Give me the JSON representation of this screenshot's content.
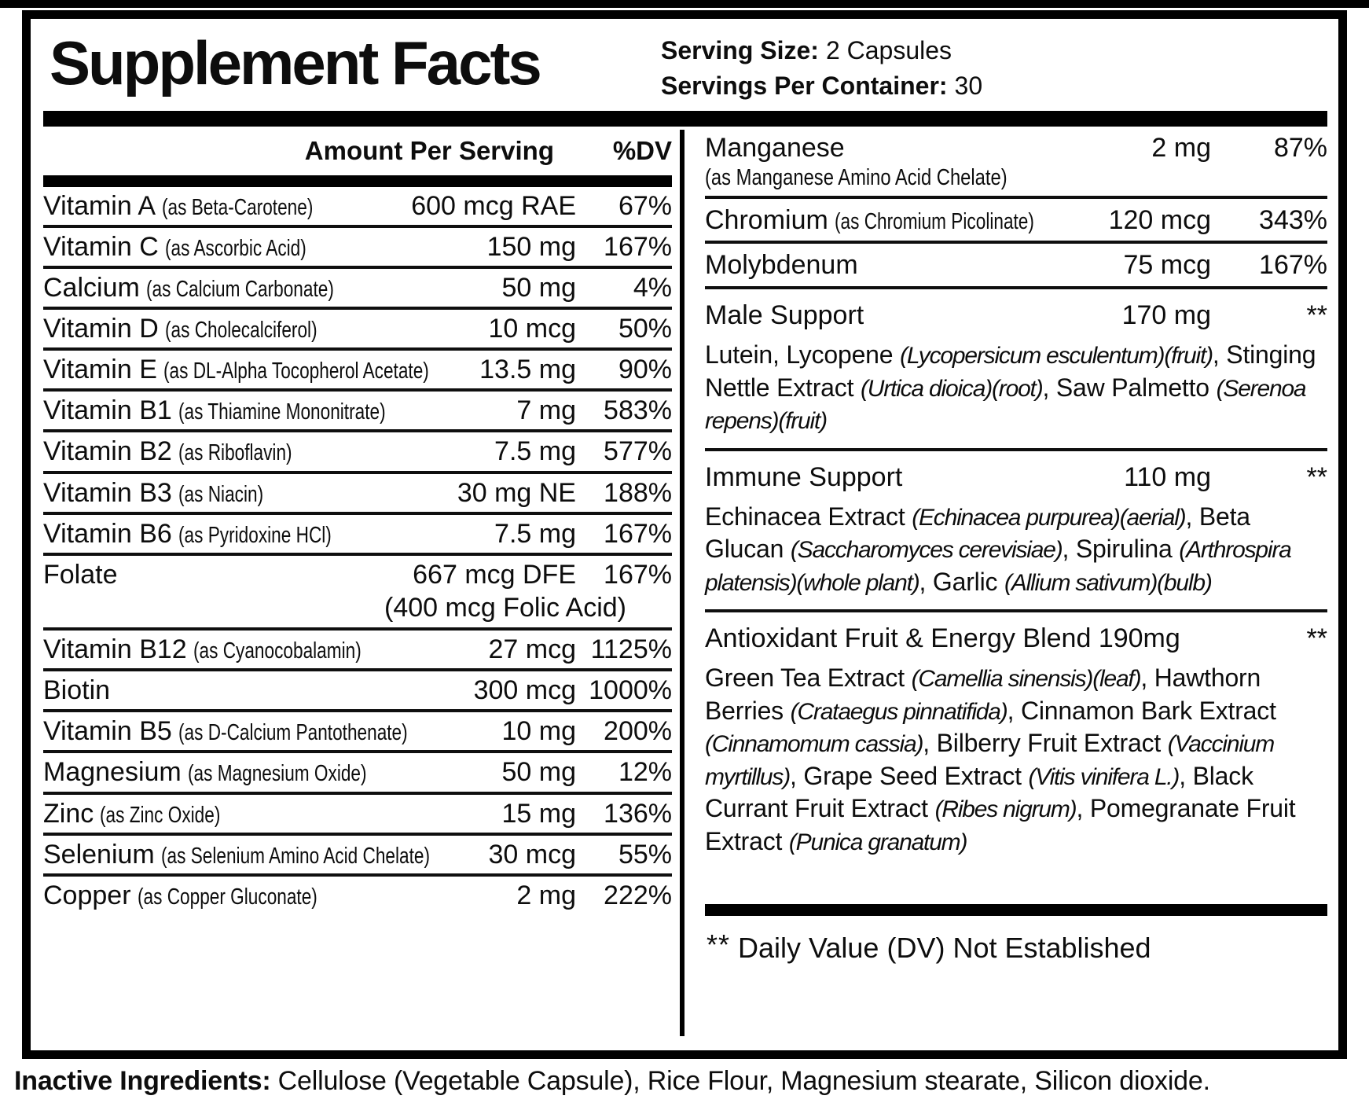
{
  "title": "Supplement Facts",
  "serving": {
    "size_label": "Serving Size:",
    "size_value": "2 Capsules",
    "container_label": "Servings Per Container:",
    "container_value": "30"
  },
  "left": {
    "header_amount": "Amount Per Serving",
    "header_dv": "%DV",
    "rows": [
      {
        "name": "Vitamin A",
        "as": "(as Beta-Carotene)",
        "amount": "600 mcg RAE",
        "dv": "67%"
      },
      {
        "name": "Vitamin C",
        "as": "(as Ascorbic Acid)",
        "amount": "150 mg",
        "dv": "167%"
      },
      {
        "name": "Calcium",
        "as": "(as Calcium Carbonate)",
        "amount": "50 mg",
        "dv": "4%"
      },
      {
        "name": "Vitamin D",
        "as": "(as Cholecalciferol)",
        "amount": "10 mcg",
        "dv": "50%"
      },
      {
        "name": "Vitamin E",
        "as": "(as DL-Alpha Tocopherol Acetate)",
        "amount": "13.5 mg",
        "dv": "90%"
      },
      {
        "name": "Vitamin B1",
        "as": "(as Thiamine Mononitrate)",
        "amount": "7 mg",
        "dv": "583%"
      },
      {
        "name": "Vitamin B2",
        "as": "(as Riboflavin)",
        "amount": "7.5 mg",
        "dv": "577%"
      },
      {
        "name": "Vitamin B3",
        "as": "(as Niacin)",
        "amount": "30 mg NE",
        "dv": "188%"
      },
      {
        "name": "Vitamin B6",
        "as": "(as Pyridoxine HCl)",
        "amount": "7.5 mg",
        "dv": "167%"
      },
      {
        "name": "Folate",
        "as": "",
        "amount": "667 mcg DFE",
        "dv": "167%",
        "sub": "(400 mcg Folic Acid)"
      },
      {
        "name": "Vitamin B12",
        "as": "(as Cyanocobalamin)",
        "amount": "27 mcg",
        "dv": "1125%"
      },
      {
        "name": "Biotin",
        "as": "",
        "amount": "300 mcg",
        "dv": "1000%"
      },
      {
        "name": "Vitamin B5",
        "as": "(as D-Calcium Pantothenate)",
        "amount": "10 mg",
        "dv": "200%"
      },
      {
        "name": "Magnesium",
        "as": "(as Magnesium Oxide)",
        "amount": "50 mg",
        "dv": "12%"
      },
      {
        "name": "Zinc",
        "as": "(as Zinc Oxide)",
        "amount": "15 mg",
        "dv": "136%"
      },
      {
        "name": "Selenium",
        "as": "(as Selenium Amino Acid Chelate)",
        "amount": "30 mcg",
        "dv": "55%"
      },
      {
        "name": "Copper",
        "as": "(as Copper Gluconate)",
        "amount": "2 mg",
        "dv": "222%"
      }
    ]
  },
  "right": {
    "rows": [
      {
        "name": "Manganese",
        "as": "",
        "amount": "2 mg",
        "dv": "87%",
        "sub": "(as Manganese Amino Acid Chelate)"
      },
      {
        "name": "Chromium",
        "as": "(as Chromium Picolinate)",
        "amount": "120 mcg",
        "dv": "343%"
      },
      {
        "name": "Molybdenum",
        "as": "",
        "amount": "75 mcg",
        "dv": "167%"
      },
      {
        "name": "Male Support",
        "as": "",
        "amount": "170 mg",
        "dv": "**",
        "desc": [
          {
            "t": "Lutein, Lycopene "
          },
          {
            "t": "(Lycopersicum esculentum)(fruit)",
            "i": true
          },
          {
            "t": ", Stinging Nettle Extract "
          },
          {
            "t": "(Urtica dioica)(root)",
            "i": true
          },
          {
            "t": ", Saw Palmetto "
          },
          {
            "t": "(Serenoa repens)(fruit)",
            "i": true
          }
        ]
      },
      {
        "name": "Immune Support",
        "as": "",
        "amount": "110 mg",
        "dv": "**",
        "desc": [
          {
            "t": "Echinacea Extract "
          },
          {
            "t": "(Echinacea purpurea)(aerial)",
            "i": true
          },
          {
            "t": ", Beta Glucan "
          },
          {
            "t": "(Saccharomyces cerevisiae)",
            "i": true
          },
          {
            "t": ", Spirulina "
          },
          {
            "t": "(Arthrospira platensis)(whole plant)",
            "i": true
          },
          {
            "t": ", Garlic "
          },
          {
            "t": "(Allium sativum)(bulb)",
            "i": true
          }
        ]
      },
      {
        "name": "Antioxidant Fruit & Energy Blend 190mg",
        "as": "",
        "amount": "",
        "dv": "**",
        "desc": [
          {
            "t": "Green Tea Extract "
          },
          {
            "t": "(Camellia sinensis)(leaf)",
            "i": true
          },
          {
            "t": ", Hawthorn Berries "
          },
          {
            "t": "(Crataegus pinnatifida)",
            "i": true
          },
          {
            "t": ", Cinnamon Bark Extract "
          },
          {
            "t": "(Cinnamomum cassia)",
            "i": true
          },
          {
            "t": ", Bilberry Fruit Extract "
          },
          {
            "t": "(Vaccinium myrtillus)",
            "i": true
          },
          {
            "t": ", Grape Seed Extract "
          },
          {
            "t": "(Vitis vinifera L.)",
            "i": true
          },
          {
            "t": ", Black Currant Fruit Extract "
          },
          {
            "t": "(Ribes nigrum)",
            "i": true
          },
          {
            "t": ", Pomegranate Fruit Extract "
          },
          {
            "t": "(Punica granatum)",
            "i": true
          }
        ]
      }
    ],
    "footnote_stars": "**",
    "footnote_text": "Daily Value (DV) Not Established"
  },
  "inactive": {
    "label": "Inactive Ingredients:",
    "text": " Cellulose (Vegetable Capsule), Rice Flour, Magnesium stearate, Silicon dioxide."
  }
}
